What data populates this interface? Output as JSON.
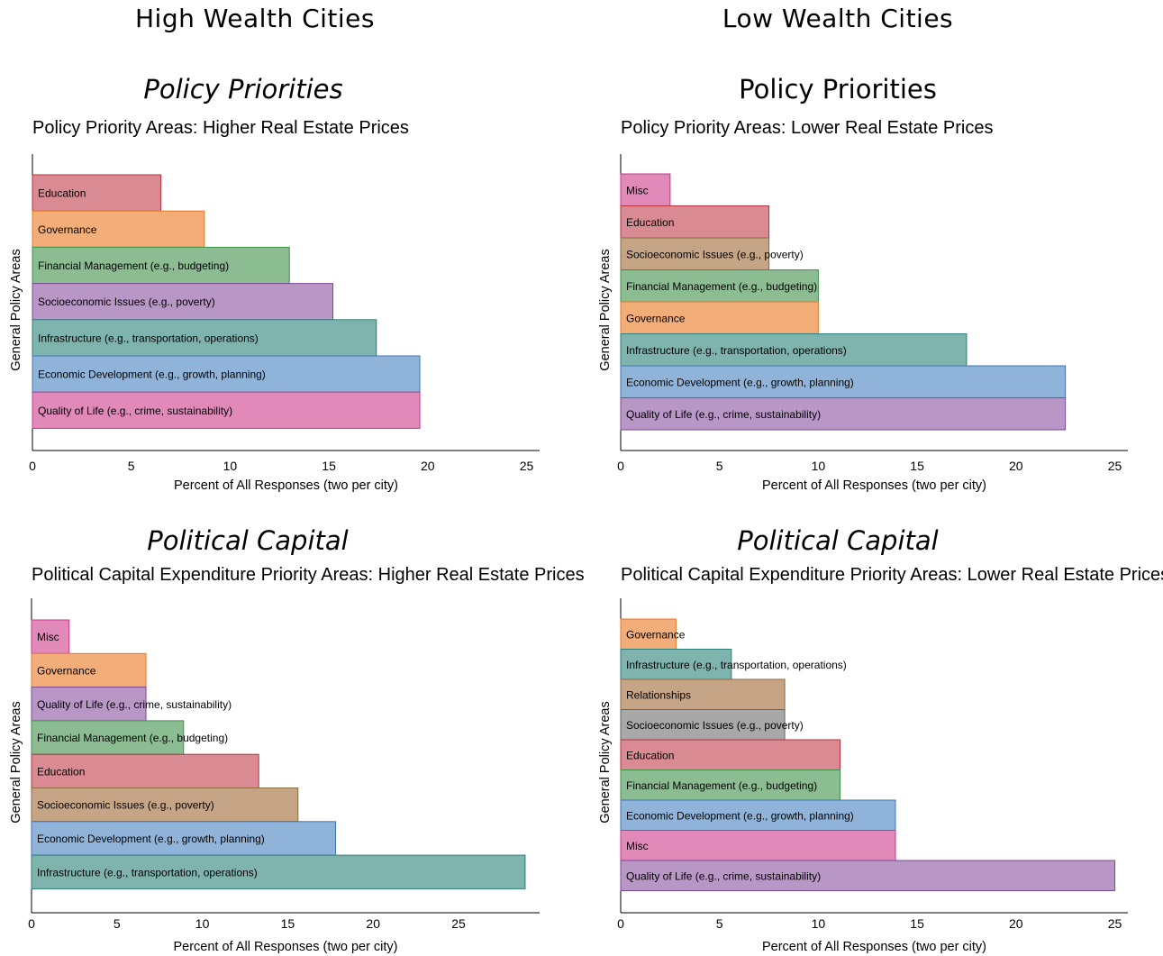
{
  "columns": [
    {
      "title": "High Wealth Cities",
      "sections": [
        "Policy Priorities",
        "Political Capital"
      ]
    },
    {
      "title": "Low Wealth Cities",
      "sections": [
        "Policy Priorities",
        "Political Capital"
      ]
    }
  ],
  "colors": {
    "Education": {
      "fill": "#d98a92",
      "stroke": "#b5323f"
    },
    "Governance": {
      "fill": "#f2ad78",
      "stroke": "#e7792a"
    },
    "Financial Management (e.g., budgeting)": {
      "fill": "#8cbc92",
      "stroke": "#3f8f47"
    },
    "Socioeconomic Issues (e.g., poverty)": {
      "fill": "#b896c6",
      "stroke": "#7e4895"
    },
    "Socioeconomic Issues (e.g., poverty) alt": {
      "fill": "#c5a586",
      "stroke": "#8d6a40"
    },
    "Infrastructure (e.g., transportation, operations)": {
      "fill": "#7fb3ae",
      "stroke": "#2e7f78"
    },
    "Economic Development (e.g., growth, planning)": {
      "fill": "#90b4d9",
      "stroke": "#3f73b2"
    },
    "Quality of Life (e.g., crime, sustainability)": {
      "fill": "#e18ab9",
      "stroke": "#c9358a"
    },
    "Quality of Life (e.g., crime, sustainability) alt": {
      "fill": "#b896c6",
      "stroke": "#7e4895"
    },
    "Misc": {
      "fill": "#e18ab9",
      "stroke": "#c9358a"
    },
    "Relationships": {
      "fill": "#c5a586",
      "stroke": "#8d6a40"
    },
    "Socioeconomic Issues gray": {
      "fill": "#a8a8a8",
      "stroke": "#666666"
    }
  },
  "chart_data": [
    {
      "type": "bar",
      "orientation": "horizontal",
      "title": "Policy Priority Areas: Higher Real Estate Prices",
      "xlabel": "Percent of All Responses (two per city)",
      "ylabel": "General Policy Areas",
      "xlim": [
        0,
        25
      ],
      "xticks": [
        "0",
        "5",
        "10",
        "15",
        "20",
        "25"
      ],
      "categories": [
        "Education",
        "Governance",
        "Financial Management (e.g., budgeting)",
        "Socioeconomic Issues (e.g., poverty)",
        "Infrastructure (e.g., transportation, operations)",
        "Economic Development (e.g., growth, planning)",
        "Quality of Life (e.g., crime, sustainability)"
      ],
      "values": [
        6.5,
        8.7,
        13.0,
        15.2,
        17.4,
        19.6,
        19.6
      ],
      "colors": [
        "Education",
        "Governance",
        "Financial Management (e.g., budgeting)",
        "Socioeconomic Issues (e.g., poverty)",
        "Infrastructure (e.g., transportation, operations)",
        "Economic Development (e.g., growth, planning)",
        "Quality of Life (e.g., crime, sustainability)"
      ]
    },
    {
      "type": "bar",
      "orientation": "horizontal",
      "title": "Policy Priority Areas: Lower Real Estate Prices",
      "xlabel": "Percent of All Responses (two per city)",
      "ylabel": "General Policy Areas",
      "xlim": [
        0,
        25
      ],
      "xticks": [
        "0",
        "5",
        "10",
        "15",
        "20",
        "25"
      ],
      "categories": [
        "Misc",
        "Education",
        "Socioeconomic Issues (e.g., poverty)",
        "Financial Management (e.g., budgeting)",
        "Governance",
        "Infrastructure (e.g., transportation, operations)",
        "Economic Development (e.g., growth, planning)",
        "Quality of Life (e.g., crime, sustainability)"
      ],
      "values": [
        2.5,
        7.5,
        7.5,
        10.0,
        10.0,
        17.5,
        22.5,
        22.5
      ],
      "colors": [
        "Misc",
        "Education",
        "Socioeconomic Issues (e.g., poverty) alt",
        "Financial Management (e.g., budgeting)",
        "Governance",
        "Infrastructure (e.g., transportation, operations)",
        "Economic Development (e.g., growth, planning)",
        "Quality of Life (e.g., crime, sustainability) alt"
      ]
    },
    {
      "type": "bar",
      "orientation": "horizontal",
      "title": "Political Capital Expenditure Priority Areas: Higher Real Estate Prices",
      "xlabel": "Percent of All Responses (two per city)",
      "ylabel": "General Policy Areas",
      "xlim": [
        0,
        29
      ],
      "xticks": [
        "0",
        "5",
        "10",
        "15",
        "20",
        "25"
      ],
      "categories": [
        "Misc",
        "Governance",
        "Quality of Life (e.g., crime, sustainability)",
        "Financial Management (e.g., budgeting)",
        "Education",
        "Socioeconomic Issues (e.g., poverty)",
        "Economic Development (e.g., growth, planning)",
        "Infrastructure (e.g., transportation, operations)"
      ],
      "values": [
        2.2,
        6.7,
        6.7,
        8.9,
        13.3,
        15.6,
        17.8,
        28.9
      ],
      "colors": [
        "Misc",
        "Governance",
        "Quality of Life (e.g., crime, sustainability) alt",
        "Financial Management (e.g., budgeting)",
        "Education",
        "Socioeconomic Issues (e.g., poverty) alt",
        "Economic Development (e.g., growth, planning)",
        "Infrastructure (e.g., transportation, operations)"
      ]
    },
    {
      "type": "bar",
      "orientation": "horizontal",
      "title": "Political Capital Expenditure Priority Areas: Lower Real Estate Prices",
      "xlabel": "Percent of All Responses (two per city)",
      "ylabel": "General Policy Areas",
      "xlim": [
        0,
        25
      ],
      "xticks": [
        "0",
        "5",
        "10",
        "15",
        "20",
        "25"
      ],
      "categories": [
        "Governance",
        "Infrastructure (e.g., transportation, operations)",
        "Relationships",
        "Socioeconomic Issues (e.g., poverty)",
        "Education",
        "Financial Management (e.g., budgeting)",
        "Economic Development (e.g., growth, planning)",
        "Misc",
        "Quality of Life (e.g., crime, sustainability)"
      ],
      "values": [
        2.8,
        5.6,
        8.3,
        8.3,
        11.1,
        11.1,
        13.9,
        13.9,
        25.0
      ],
      "colors": [
        "Governance",
        "Infrastructure (e.g., transportation, operations)",
        "Relationships",
        "Socioeconomic Issues gray",
        "Education",
        "Financial Management (e.g., budgeting)",
        "Economic Development (e.g., growth, planning)",
        "Misc",
        "Quality of Life (e.g., crime, sustainability) alt"
      ]
    }
  ]
}
